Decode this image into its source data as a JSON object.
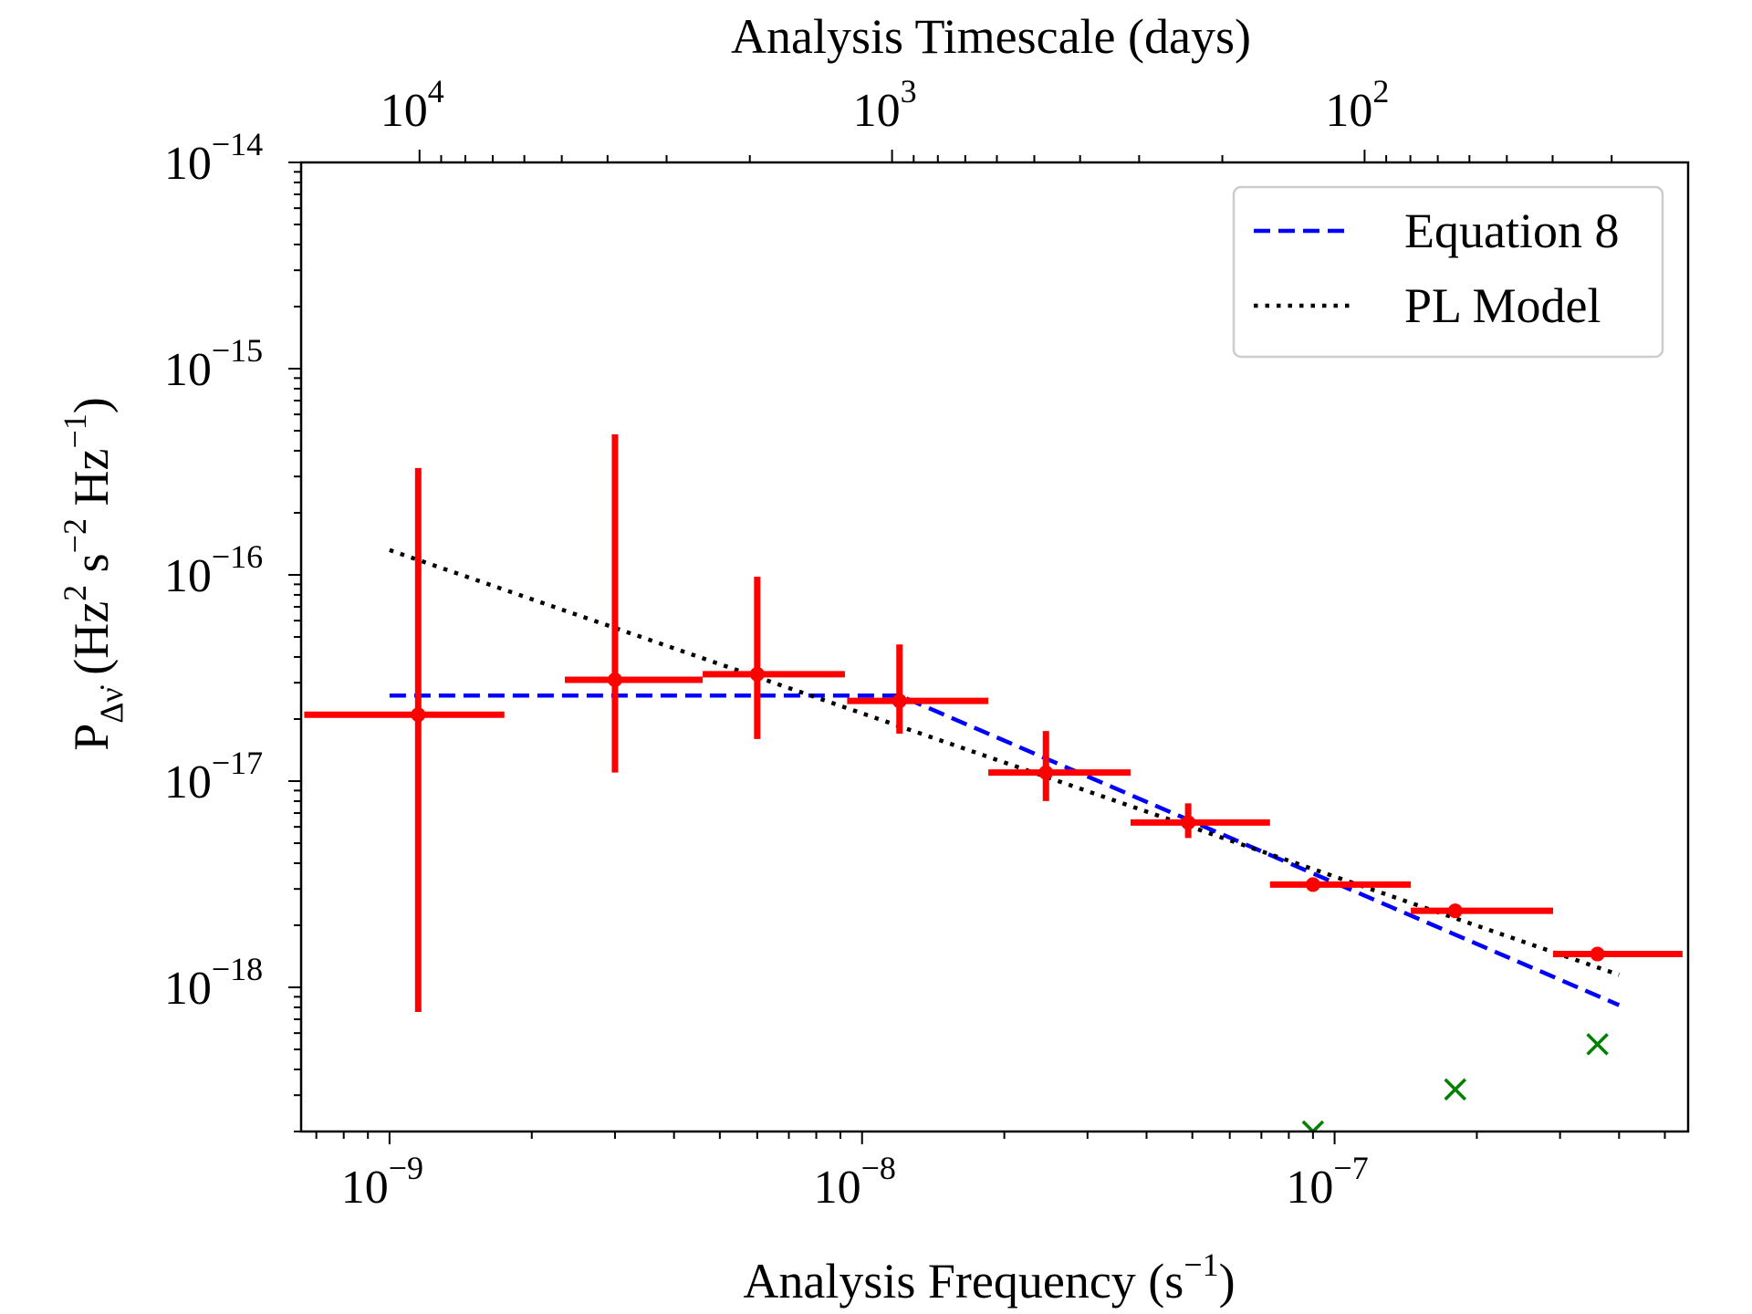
{
  "chart_data": {
    "type": "scatter",
    "title": "",
    "xlabel": "Analysis Frequency (s",
    "xlabel_sup": "−1",
    "xlabel_tail": ")",
    "ylabel_parts": [
      {
        "t": "P",
        "s": "normal"
      },
      {
        "t": "Δν̇",
        "s": "sub"
      },
      {
        "t": " (Hz",
        "s": "normal"
      },
      {
        "t": "2",
        "s": "sup"
      },
      {
        "t": " s",
        "s": "normal"
      },
      {
        "t": "−2",
        "s": "sup"
      },
      {
        "t": " Hz",
        "s": "normal"
      },
      {
        "t": "−1",
        "s": "sup"
      },
      {
        "t": ")",
        "s": "normal"
      }
    ],
    "top_xlabel": "Analysis Timescale (days)",
    "x_scale": "log",
    "y_scale": "log",
    "xlim": [
      6.5e-10,
      5.6e-07
    ],
    "ylim": [
      2e-19,
      1e-14
    ],
    "x_ticks": [
      {
        "value": 1e-09,
        "base": "10",
        "exp": "−9"
      },
      {
        "value": 1e-08,
        "base": "10",
        "exp": "−8"
      },
      {
        "value": 1e-07,
        "base": "10",
        "exp": "−7"
      }
    ],
    "y_ticks": [
      {
        "value": 1e-18,
        "base": "10",
        "exp": "−18"
      },
      {
        "value": 1e-17,
        "base": "10",
        "exp": "−17"
      },
      {
        "value": 1e-16,
        "base": "10",
        "exp": "−16"
      },
      {
        "value": 1e-15,
        "base": "10",
        "exp": "−15"
      },
      {
        "value": 1e-14,
        "base": "10",
        "exp": "−14"
      }
    ],
    "top_ticks": [
      {
        "days": 10000,
        "base": "10",
        "exp": "4"
      },
      {
        "days": 1000,
        "base": "10",
        "exp": "3"
      },
      {
        "days": 100,
        "base": "10",
        "exp": "2"
      }
    ],
    "data_points": [
      {
        "x": 1.15e-09,
        "y": 2.1e-17,
        "xlo": 6.6e-10,
        "xhi": 1.75e-09,
        "ylo": 7.6e-19,
        "yhi": 3.3e-16
      },
      {
        "x": 3e-09,
        "y": 3.1e-17,
        "xlo": 2.35e-09,
        "xhi": 4.6e-09,
        "ylo": 1.1e-17,
        "yhi": 4.8e-16
      },
      {
        "x": 6e-09,
        "y": 3.3e-17,
        "xlo": 4.6e-09,
        "xhi": 9.2e-09,
        "ylo": 1.6e-17,
        "yhi": 9.8e-17
      },
      {
        "x": 1.2e-08,
        "y": 2.45e-17,
        "xlo": 9.3e-09,
        "xhi": 1.85e-08,
        "ylo": 1.7e-17,
        "yhi": 4.6e-17
      },
      {
        "x": 2.45e-08,
        "y": 1.1e-17,
        "xlo": 1.85e-08,
        "xhi": 3.7e-08,
        "ylo": 8e-18,
        "yhi": 1.75e-17
      },
      {
        "x": 4.9e-08,
        "y": 6.3e-18,
        "xlo": 3.7e-08,
        "xhi": 7.3e-08,
        "ylo": 5.3e-18,
        "yhi": 7.8e-18
      },
      {
        "x": 9e-08,
        "y": 3.15e-18,
        "xlo": 7.3e-08,
        "xhi": 1.45e-07,
        "ylo": 2.95e-18,
        "yhi": 3.4e-18
      },
      {
        "x": 1.8e-07,
        "y": 2.35e-18,
        "xlo": 1.45e-07,
        "xhi": 2.9e-07,
        "ylo": 2.3e-18,
        "yhi": 2.4e-18
      },
      {
        "x": 3.6e-07,
        "y": 1.45e-18,
        "xlo": 2.9e-07,
        "xhi": 5.45e-07,
        "ylo": 1.42e-18,
        "yhi": 1.48e-18
      }
    ],
    "x_markers": [
      {
        "x": 9e-08,
        "y": 2e-19
      },
      {
        "x": 1.8e-07,
        "y": 3.2e-19
      },
      {
        "x": 3.6e-07,
        "y": 5.3e-19
      }
    ],
    "series": [
      {
        "name": "Equation 8",
        "style": "dashed",
        "color": "#0000ff",
        "points": [
          [
            1e-09,
            2.6e-17
          ],
          [
            1.2e-08,
            2.6e-17
          ],
          [
            4e-07,
            8.2e-19
          ]
        ]
      },
      {
        "name": "PL Model",
        "style": "dotted",
        "color": "#000000",
        "points": [
          [
            1e-09,
            1.32e-16
          ],
          [
            4e-07,
            1.15e-18
          ]
        ]
      }
    ],
    "colors": {
      "data": "#ff0000",
      "markers": "#008000",
      "axes": "#000000",
      "legend_border": "#cccccc"
    },
    "legend_position": "top-right",
    "grid": false
  }
}
